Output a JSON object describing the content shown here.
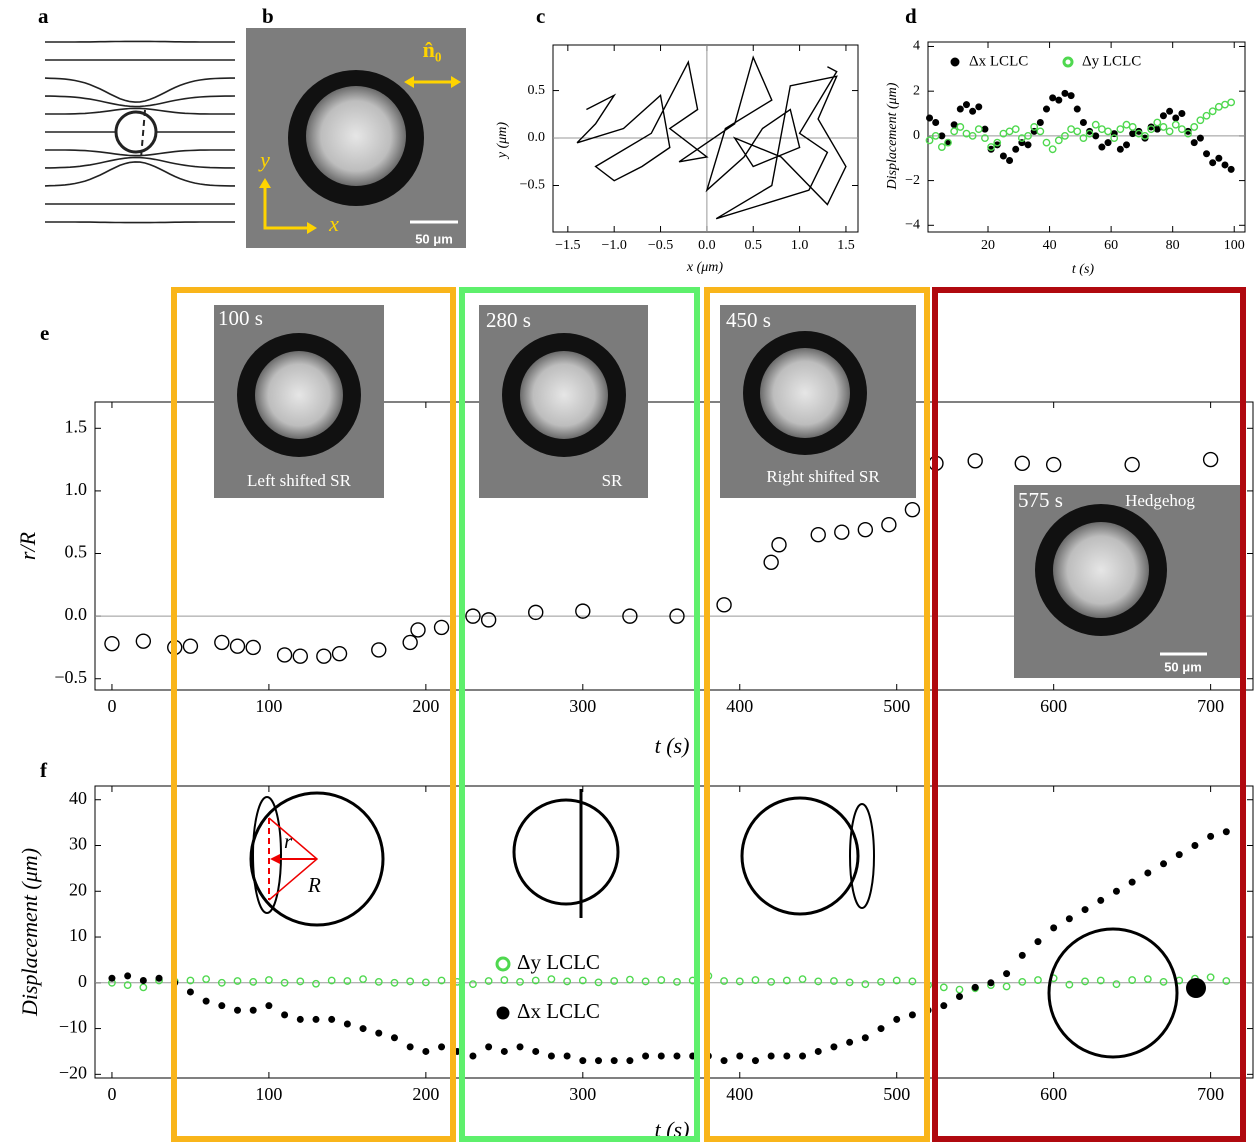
{
  "panel_labels": [
    "a",
    "b",
    "c",
    "d",
    "e",
    "f"
  ],
  "panel_b": {
    "director": "n̂₀",
    "axis_x": "x",
    "axis_y": "y",
    "scale_bar": "50 μm"
  },
  "insets": [
    {
      "time": "100 s",
      "label": "Left shifted SR"
    },
    {
      "time": "280 s",
      "label": "SR"
    },
    {
      "time": "450 s",
      "label": "Right shifted SR"
    },
    {
      "time": "575 s",
      "label": "Hedgehog",
      "scale_bar": "50 μm"
    }
  ],
  "schematic": {
    "r": "r",
    "R": "R"
  },
  "chart_data": [
    {
      "type": "line",
      "xlabel": "x (μm)",
      "ylabel": "y (μm)",
      "color": "#000000",
      "zero_lines": true,
      "x": [
        -1.3,
        -1.0,
        -1.2,
        -1.4,
        -0.9,
        -0.5,
        -0.4,
        -0.7,
        -1.0,
        -1.2,
        -0.6,
        -0.2,
        -0.1,
        -0.4,
        0.0,
        -0.3,
        0.3,
        0.5,
        0.7,
        0.2,
        0.0,
        0.4,
        0.6,
        0.9,
        1.0,
        0.5,
        0.3,
        0.8,
        1.3,
        1.5,
        1.2,
        1.4,
        0.9,
        0.7,
        0.1,
        1.1,
        1.3,
        1.0,
        1.4,
        1.3
      ],
      "values": [
        0.3,
        0.45,
        0.15,
        -0.05,
        0.1,
        0.45,
        -0.1,
        -0.3,
        -0.45,
        -0.3,
        0.05,
        0.8,
        0.3,
        0.1,
        -0.2,
        -0.25,
        0.15,
        0.85,
        0.4,
        0.1,
        -0.55,
        -0.2,
        0.1,
        0.3,
        -0.1,
        -0.3,
        0.0,
        -0.2,
        -0.7,
        -0.3,
        0.2,
        0.65,
        0.55,
        -0.5,
        -0.85,
        -0.55,
        -0.15,
        0.05,
        0.7,
        0.75
      ],
      "xlim": [
        -1.66,
        1.63
      ],
      "ylim": [
        -0.99,
        0.98
      ],
      "xticks": [
        {
          "value": -1.5,
          "label": "−1.5"
        },
        {
          "value": -1,
          "label": "−1.0"
        },
        {
          "value": -0.5,
          "label": "−0.5"
        },
        {
          "value": 0,
          "label": "0.0"
        },
        0.5,
        {
          "value": 1,
          "label": "1.0"
        },
        1.5
      ],
      "yticks": [
        {
          "value": -0.5,
          "label": "−0.5"
        },
        {
          "value": 0,
          "label": "0.0"
        },
        0.5
      ]
    },
    {
      "type": "scatter",
      "xlabel": "t (s)",
      "ylabel": "Displacement (μm)",
      "zero_lines": true,
      "x": [
        1,
        3,
        5,
        7,
        9,
        11,
        13,
        15,
        17,
        19,
        21,
        23,
        25,
        27,
        29,
        31,
        33,
        35,
        37,
        39,
        41,
        43,
        45,
        47,
        49,
        51,
        53,
        55,
        57,
        59,
        61,
        63,
        65,
        67,
        69,
        71,
        73,
        75,
        77,
        79,
        81,
        83,
        85,
        87,
        89,
        91,
        93,
        95,
        97,
        99
      ],
      "series": [
        {
          "name": "Δx LCLC",
          "color": "#000000",
          "marker": "filled",
          "values": [
            0.8,
            0.6,
            0,
            -0.3,
            0.5,
            1.2,
            1.4,
            1.1,
            1.3,
            0.3,
            -0.6,
            -0.4,
            -0.9,
            -1.1,
            -0.6,
            -0.3,
            -0.4,
            0.2,
            0.6,
            1.2,
            1.7,
            1.6,
            1.9,
            1.8,
            1.2,
            0.6,
            0.2,
            0,
            -0.5,
            -0.3,
            0.1,
            -0.6,
            -0.4,
            0.1,
            0.2,
            -0.1,
            0.4,
            0.3,
            0.9,
            1.1,
            0.8,
            1.0,
            0.2,
            -0.3,
            -0.1,
            -0.8,
            -1.2,
            -1.0,
            -1.3,
            -1.5
          ]
        },
        {
          "name": "Δy LCLC",
          "color": "#4fd84f",
          "marker": "open",
          "values": [
            -0.2,
            0,
            -0.5,
            -0.3,
            0.2,
            0.4,
            0.1,
            0,
            0.3,
            -0.1,
            -0.5,
            -0.3,
            0.1,
            0.2,
            0.3,
            -0.1,
            0,
            0.4,
            0.2,
            -0.3,
            -0.6,
            -0.2,
            0,
            0.3,
            0.2,
            -0.1,
            0.1,
            0.5,
            0.3,
            0.2,
            -0.1,
            0.3,
            0.5,
            0.4,
            0.1,
            0,
            0.3,
            0.6,
            0.4,
            0.2,
            0.5,
            0.3,
            0.1,
            0.4,
            0.7,
            0.9,
            1.1,
            1.3,
            1.4,
            1.5
          ]
        }
      ],
      "xlim": [
        0.5,
        103.5
      ],
      "ylim": [
        -4.3,
        4.2
      ],
      "xticks": [
        20,
        40,
        60,
        80,
        100
      ],
      "yticks": [
        {
          "value": -4,
          "label": "−4"
        },
        {
          "value": -2,
          "label": "−2"
        },
        0,
        2,
        4
      ]
    },
    {
      "type": "scatter",
      "xlabel": "t (s)",
      "ylabel": "r/R",
      "zero_lines": true,
      "color": "#000000",
      "marker": "open",
      "x": [
        0,
        20,
        40,
        50,
        70,
        80,
        90,
        110,
        120,
        135,
        145,
        170,
        190,
        195,
        210,
        230,
        240,
        270,
        300,
        330,
        360,
        390,
        420,
        425,
        450,
        465,
        480,
        495,
        510,
        525,
        550,
        580,
        600,
        650,
        700
      ],
      "values": [
        -0.22,
        -0.2,
        -0.25,
        -0.24,
        -0.21,
        -0.24,
        -0.25,
        -0.31,
        -0.32,
        -0.32,
        -0.3,
        -0.27,
        -0.21,
        -0.11,
        -0.09,
        0.0,
        -0.03,
        0.03,
        0.04,
        0.0,
        0.0,
        0.09,
        0.43,
        0.57,
        0.65,
        0.67,
        0.69,
        0.73,
        0.85,
        1.22,
        1.24,
        1.22,
        1.21,
        1.21,
        1.25
      ],
      "xlim": [
        -10.8,
        727
      ],
      "ylim": [
        -0.59,
        1.71
      ],
      "xticks": [
        0,
        100,
        200,
        300,
        400,
        500,
        600,
        700
      ],
      "yticks": [
        {
          "value": -0.5,
          "label": "−0.5"
        },
        {
          "value": 0,
          "label": "0.0"
        },
        0.5,
        {
          "value": 1,
          "label": "1.0"
        },
        1.5
      ]
    },
    {
      "type": "scatter",
      "xlabel": "t (s)",
      "ylabel": "Displacement (μm)",
      "zero_lines": true,
      "x": [
        0,
        10,
        20,
        30,
        40,
        50,
        60,
        70,
        80,
        90,
        100,
        110,
        120,
        130,
        140,
        150,
        160,
        170,
        180,
        190,
        200,
        210,
        220,
        230,
        240,
        250,
        260,
        270,
        280,
        290,
        300,
        310,
        320,
        330,
        340,
        350,
        360,
        370,
        380,
        390,
        400,
        410,
        420,
        430,
        440,
        450,
        460,
        470,
        480,
        490,
        500,
        510,
        520,
        530,
        540,
        550,
        560,
        570,
        580,
        590,
        600,
        610,
        620,
        630,
        640,
        650,
        660,
        670,
        680,
        690,
        700,
        710
      ],
      "series": [
        {
          "name": "Δy  LCLC",
          "color": "#4fd84f",
          "marker": "open",
          "values": [
            0,
            -0.5,
            -1,
            0.5,
            0.3,
            0.5,
            0.8,
            0,
            0.4,
            0.2,
            0.6,
            0,
            0.3,
            -0.2,
            0.5,
            0.4,
            0.8,
            0.2,
            0,
            0.3,
            0.1,
            0.5,
            0.2,
            -0.3,
            0.4,
            0.6,
            0.2,
            0.5,
            0.8,
            0.3,
            0.5,
            0.1,
            0.4,
            0.7,
            0.3,
            0.6,
            0.2,
            0.5,
            1.5,
            0.4,
            0.3,
            0.6,
            0.2,
            0.5,
            0.8,
            0.3,
            0.4,
            0.1,
            -0.3,
            0.2,
            0.5,
            0.3,
            -0.5,
            -1,
            -1.5,
            -1.2,
            -0.5,
            -0.8,
            0.2,
            0.6,
            1.0,
            -0.4,
            0.3,
            0.5,
            -0.3,
            0.6,
            0.8,
            0.2,
            0.5,
            0.9,
            1.2,
            0.4
          ]
        },
        {
          "name": "Δx  LCLC",
          "color": "#000000",
          "marker": "filled",
          "values": [
            1,
            1.5,
            0.5,
            1,
            0,
            -2,
            -4,
            -5,
            -6,
            -6,
            -5,
            -7,
            -8,
            -8,
            -8,
            -9,
            -10,
            -11,
            -12,
            -14,
            -15,
            -14,
            -15,
            -16,
            -14,
            -15,
            -14,
            -15,
            -16,
            -16,
            -17,
            -17,
            -17,
            -17,
            -16,
            -16,
            -16,
            -16,
            -16,
            -17,
            -16,
            -17,
            -16,
            -16,
            -16,
            -15,
            -14,
            -13,
            -12,
            -10,
            -8,
            -7,
            -6,
            -5,
            -3,
            -1,
            0,
            2,
            6,
            9,
            12,
            14,
            16,
            18,
            20,
            22,
            24,
            26,
            28,
            30,
            32,
            33
          ]
        }
      ],
      "xlim": [
        -10.8,
        727
      ],
      "ylim": [
        -20.8,
        43
      ],
      "xticks": [
        0,
        100,
        200,
        300,
        400,
        500,
        600,
        700
      ],
      "yticks": [
        {
          "value": -20,
          "label": "−20"
        },
        {
          "value": -10,
          "label": "−10"
        },
        0,
        10,
        20,
        30,
        40
      ]
    }
  ]
}
